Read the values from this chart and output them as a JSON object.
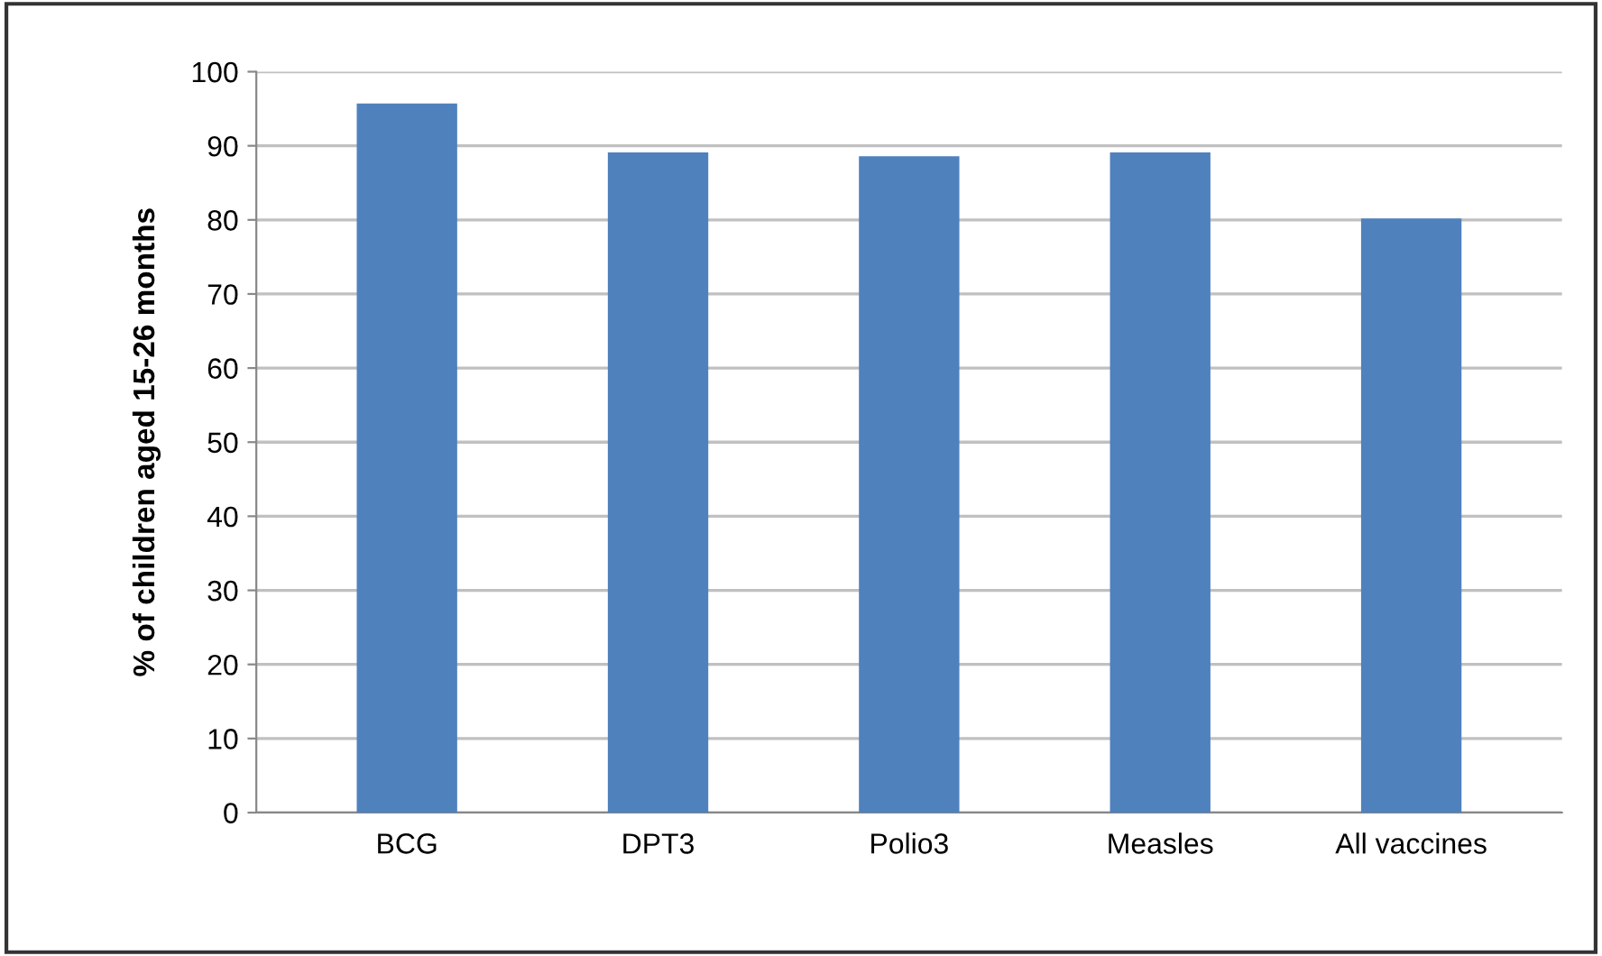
{
  "chart_data": {
    "type": "bar",
    "ylabel": "% of children aged 15-26 months",
    "categories": [
      "BCG",
      "DPT3",
      "Polio3",
      "Measles",
      "All vaccines"
    ],
    "values": [
      95.7,
      89.1,
      88.6,
      89.1,
      80.2
    ],
    "color": "#4f81bd",
    "ylim": [
      0,
      100
    ],
    "yticks": [
      0,
      10,
      20,
      30,
      40,
      50,
      60,
      70,
      80,
      90,
      100
    ],
    "grid": "y"
  }
}
